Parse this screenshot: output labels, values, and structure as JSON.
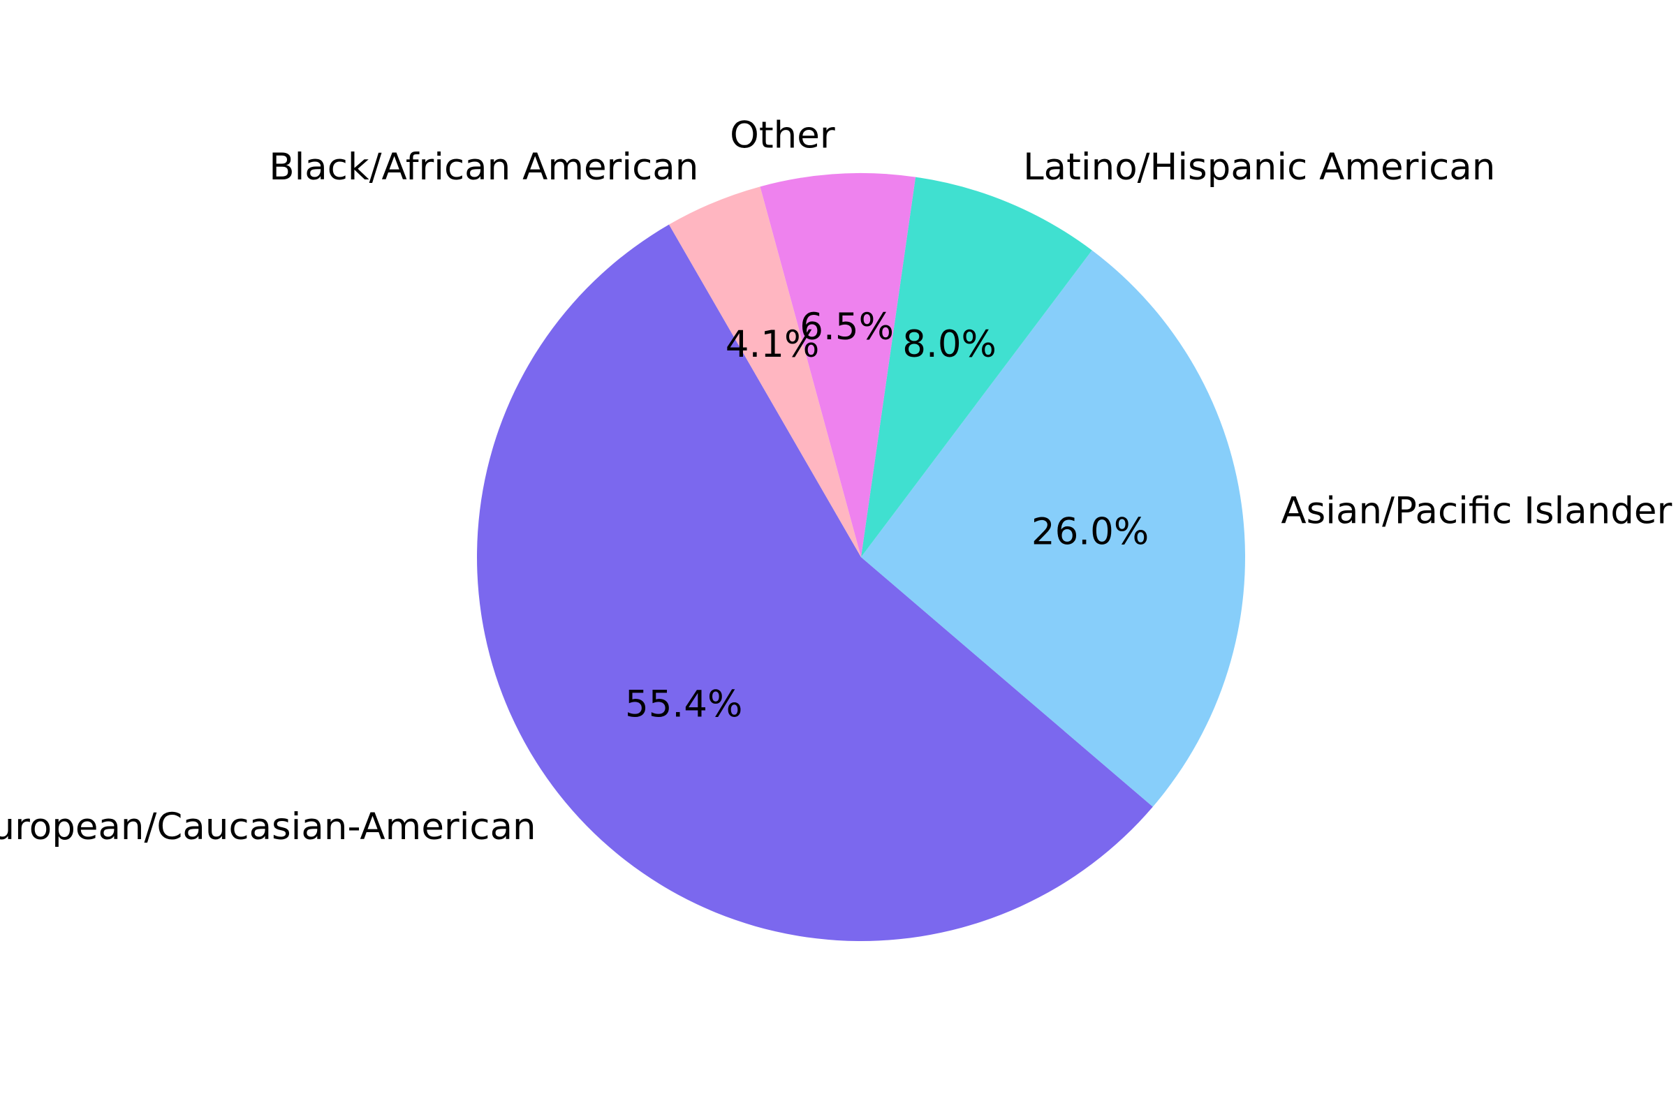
{
  "chart_data": {
    "type": "pie",
    "title": "",
    "start_angle_deg": 120,
    "direction": "counterclockwise",
    "slices": [
      {
        "label": "European/Caucasian-American",
        "value": 55.4,
        "pct_label": "55.4%",
        "color": "#7B68EE"
      },
      {
        "label": "Asian/Pacific Islander",
        "value": 26.0,
        "pct_label": "26.0%",
        "color": "#87CEFA"
      },
      {
        "label": "Latino/Hispanic American",
        "value": 8.0,
        "pct_label": "8.0%",
        "color": "#40E0D0"
      },
      {
        "label": "Other",
        "value": 6.5,
        "pct_label": "6.5%",
        "color": "#EE82EE"
      },
      {
        "label": "Black/African American",
        "value": 4.1,
        "pct_label": "4.1%",
        "color": "#FFB6C1"
      }
    ]
  }
}
